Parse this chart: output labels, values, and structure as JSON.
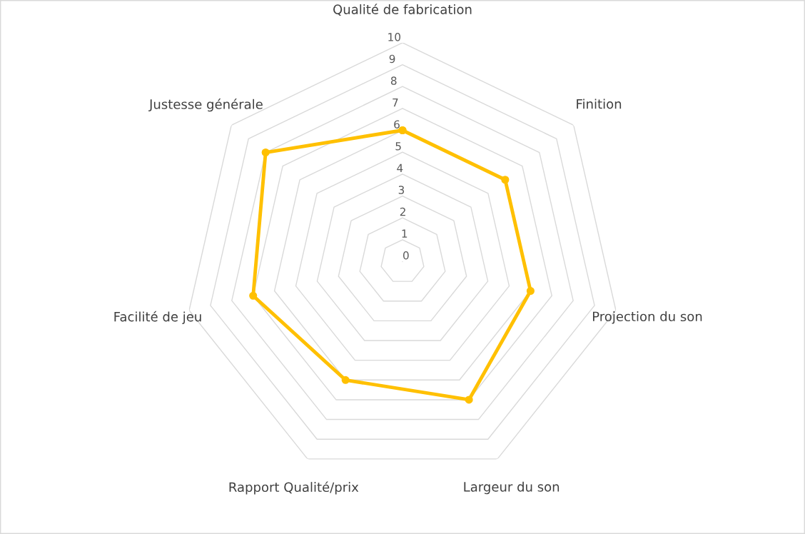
{
  "chart_data": {
    "type": "radar",
    "categories": [
      "Qualité de fabrication",
      "Finition",
      "Projection du son",
      "Largeur du son",
      "Rapport Qualité/prix",
      "Facilité de jeu",
      "Justesse générale"
    ],
    "series": [
      {
        "color": "#ffc000",
        "values": [
          6,
          6,
          6,
          7,
          6,
          7,
          8
        ]
      }
    ],
    "ylim": [
      0,
      10
    ],
    "yticks": [
      0,
      1,
      2,
      3,
      4,
      5,
      6,
      7,
      8,
      9,
      10
    ],
    "grid": true,
    "marker": "circle",
    "line_style": "solid",
    "legend": false
  }
}
